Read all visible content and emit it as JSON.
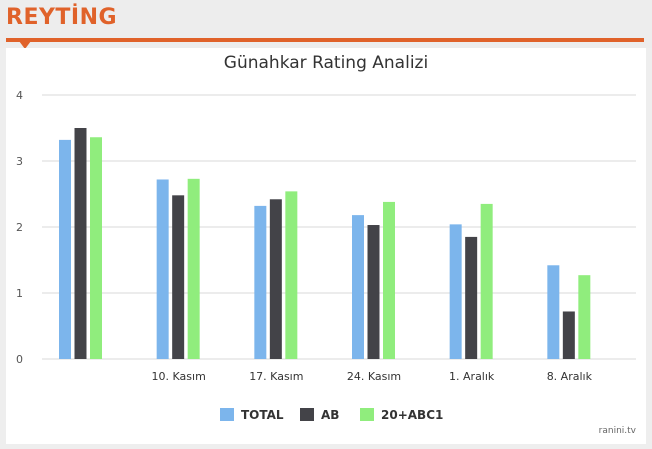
{
  "header": {
    "title": "REYTİNG"
  },
  "watermark": "ranini.tv",
  "colors": {
    "accent": "#e0622a",
    "total": "#7cb5ec",
    "ab": "#434348",
    "abc1": "#90ed7d",
    "grid": "#d8d8d8"
  },
  "chart_data": {
    "type": "bar",
    "title": "Günahkar Rating Analizi",
    "xlabel": "",
    "ylabel": "",
    "ylim": [
      0,
      4
    ],
    "yticks": [
      0,
      1,
      2,
      3,
      4
    ],
    "grid": true,
    "legend_position": "bottom-center",
    "categories": [
      "",
      "10. Kasım",
      "17. Kasım",
      "24. Kasım",
      "1. Aralık",
      "8. Aralık"
    ],
    "series": [
      {
        "name": "TOTAL",
        "color": "#7cb5ec",
        "values": [
          3.32,
          2.72,
          2.32,
          2.18,
          2.04,
          1.42
        ]
      },
      {
        "name": "AB",
        "color": "#434348",
        "values": [
          3.5,
          2.48,
          2.42,
          2.03,
          1.85,
          0.72
        ]
      },
      {
        "name": "20+ABC1",
        "color": "#90ed7d",
        "values": [
          3.36,
          2.73,
          2.54,
          2.38,
          2.35,
          1.27
        ]
      }
    ]
  }
}
